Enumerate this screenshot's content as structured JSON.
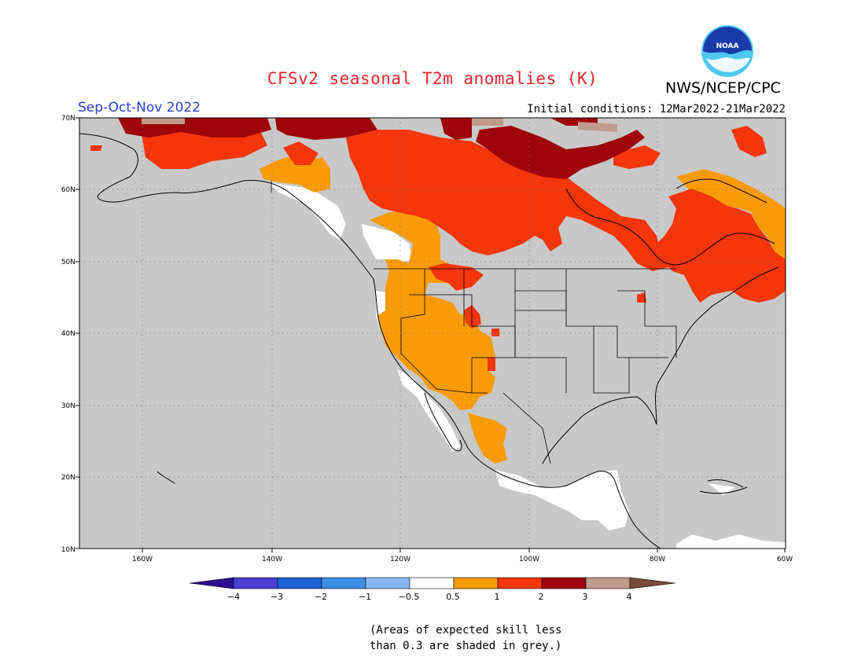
{
  "title": "CFSv2 seasonal T2m anomalies (K)",
  "agency": "NWS/NCEP/CPC",
  "logo_text": "NOAA",
  "season": "Sep-Oct-Nov 2022",
  "initial_conditions": "Initial conditions: 12Mar2022-21Mar2022",
  "lat_labels": [
    "70N",
    "60N",
    "50N",
    "40N",
    "30N",
    "20N",
    "10N"
  ],
  "lon_labels": [
    "160W",
    "140W",
    "120W",
    "100W",
    "80W",
    "60W"
  ],
  "legend": {
    "labels": [
      "−4",
      "−3",
      "−2",
      "−1",
      "−0.5",
      "0.5",
      "1",
      "2",
      "3",
      "4"
    ],
    "colors": [
      "#2a0e8f",
      "#4a3fd1",
      "#1c62d4",
      "#3d8de6",
      "#83b7f0",
      "#ffffff",
      "#f99b07",
      "#f5350c",
      "#9e0409",
      "#c29a8b",
      "#7b4a36"
    ]
  },
  "note": [
    "(Areas of expected skill less",
    "than 0.3 are shaded in grey.)"
  ],
  "map_colors": {
    "grey": "#c8c8c8",
    "white": "#ffffff",
    "orange": "#f99b07",
    "red": "#f5350c",
    "darkred": "#9e0409",
    "tan": "#c29a8b"
  }
}
